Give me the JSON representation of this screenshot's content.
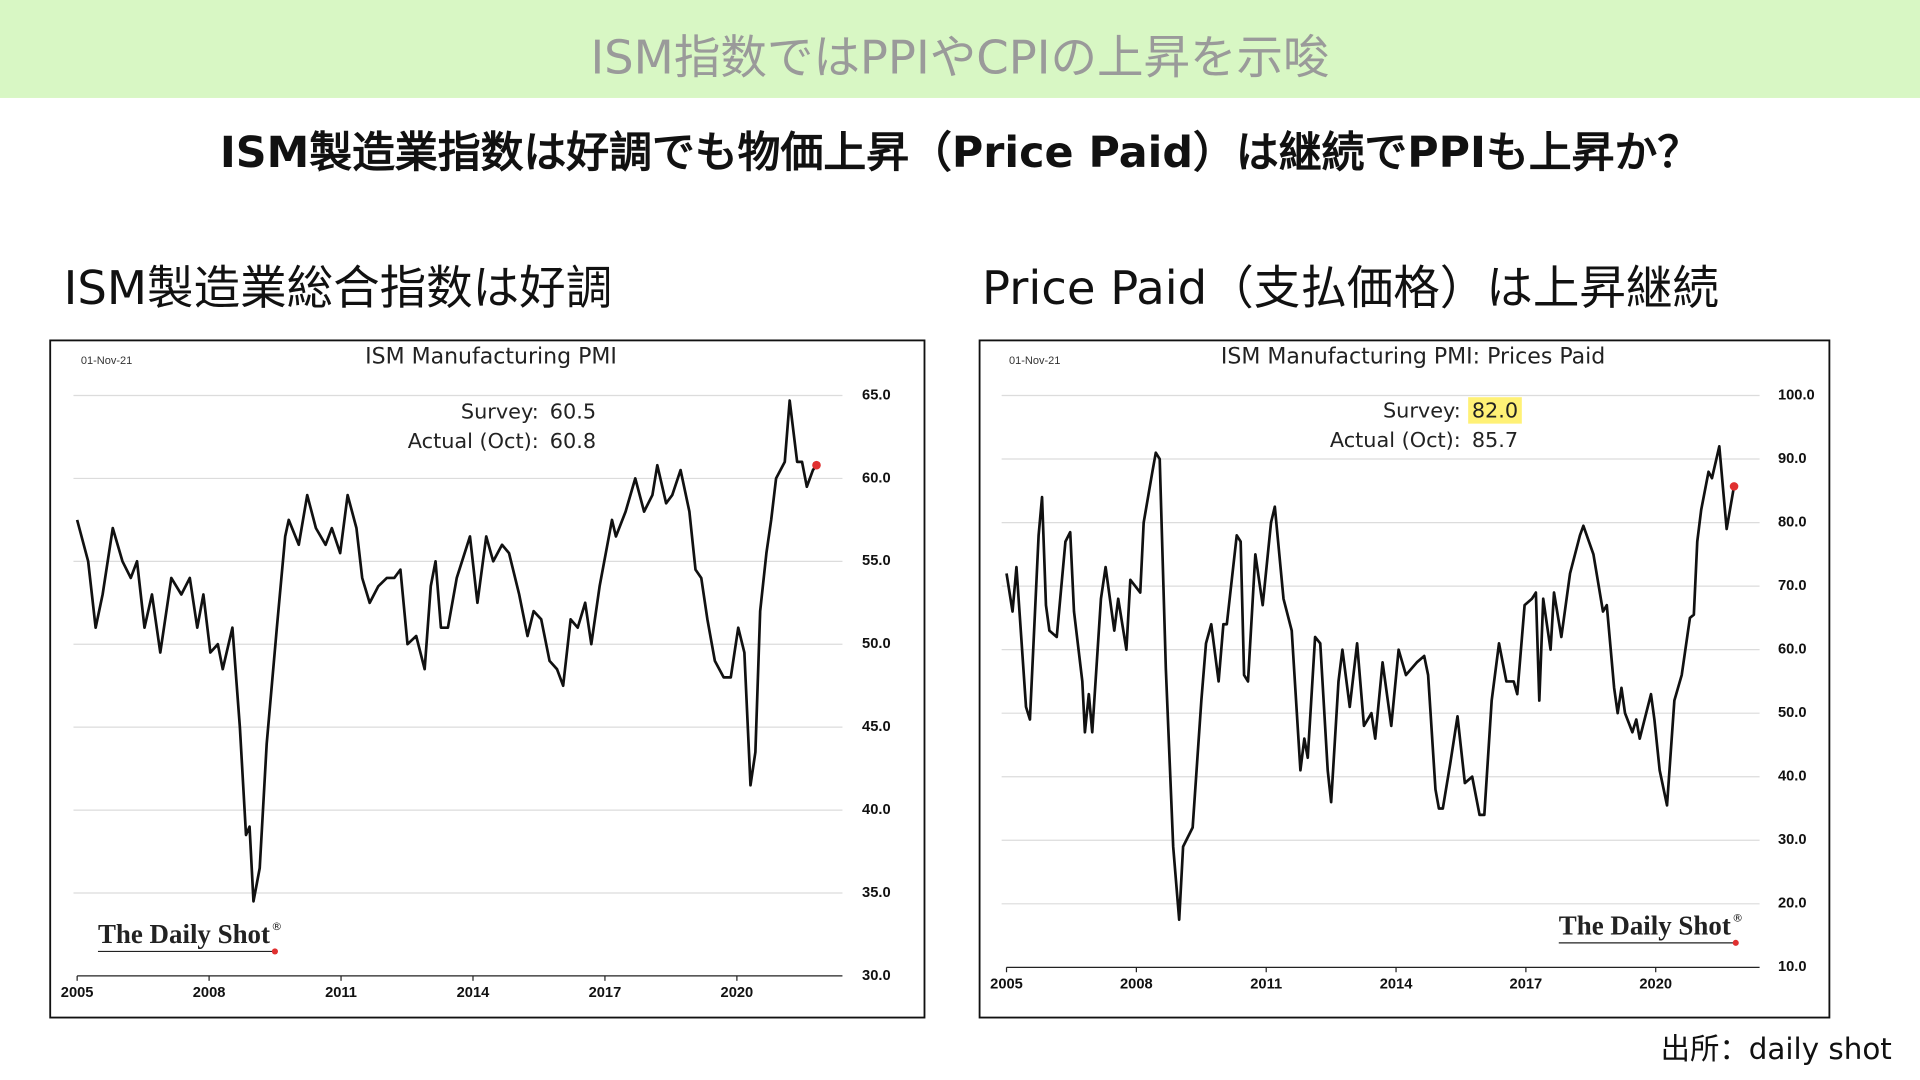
{
  "slide": {
    "header": "ISM指数ではPPIやCPIの上昇を示唆",
    "subtitle": "ISM製造業指数は好調でも物価上昇（Price Paid）は継続でPPIも上昇か？",
    "left_heading": "ISM製造業総合指数は好調",
    "right_heading": "Price Paid（支払価格）は上昇継続",
    "source": "出所：daily shot"
  },
  "chart_data": [
    {
      "type": "line",
      "title": "ISM Manufacturing PMI",
      "date_label": "01-Nov-21",
      "annotations": [
        {
          "label": "Survey:",
          "value": "60.5"
        },
        {
          "label": "Actual (Oct):",
          "value": "60.8"
        }
      ],
      "watermark": "The Daily Shot",
      "watermark_mark": "®",
      "color": "#111111",
      "marker_color": "#e03030",
      "grid": true,
      "x": [
        2005.0,
        2005.25,
        2005.42,
        2005.58,
        2005.81,
        2006.03,
        2006.22,
        2006.36,
        2006.53,
        2006.7,
        2006.89,
        2007.14,
        2007.37,
        2007.56,
        2007.73,
        2007.87,
        2008.03,
        2008.2,
        2008.31,
        2008.53,
        2008.7,
        2008.84,
        2008.92,
        2009.01,
        2009.15,
        2009.31,
        2009.54,
        2009.73,
        2009.81,
        2010.04,
        2010.23,
        2010.43,
        2010.65,
        2010.79,
        2010.98,
        2011.15,
        2011.35,
        2011.48,
        2011.65,
        2011.85,
        2012.04,
        2012.21,
        2012.35,
        2012.51,
        2012.71,
        2012.9,
        2013.04,
        2013.15,
        2013.27,
        2013.43,
        2013.63,
        2013.93,
        2014.1,
        2014.3,
        2014.46,
        2014.66,
        2014.82,
        2015.05,
        2015.24,
        2015.38,
        2015.55,
        2015.74,
        2015.91,
        2016.05,
        2016.22,
        2016.38,
        2016.55,
        2016.69,
        2016.88,
        2017.16,
        2017.25,
        2017.47,
        2017.69,
        2017.89,
        2018.08,
        2018.19,
        2018.39,
        2018.53,
        2018.72,
        2018.92,
        2019.06,
        2019.19,
        2019.33,
        2019.5,
        2019.7,
        2019.86,
        2020.03,
        2020.17,
        2020.31,
        2020.42,
        2020.53,
        2020.67,
        2020.78,
        2020.89,
        2021.09,
        2021.2,
        2021.37,
        2021.48,
        2021.59,
        2021.73,
        2021.81
      ],
      "values": [
        57.5,
        55,
        51,
        53,
        57,
        55,
        54,
        55,
        51,
        53,
        49.5,
        54,
        53,
        54,
        51,
        53,
        49.5,
        50,
        48.5,
        51,
        45,
        38.5,
        39,
        34.5,
        36.5,
        44,
        51,
        56.5,
        57.5,
        56,
        59,
        57,
        56,
        57,
        55.5,
        59,
        57,
        54,
        52.5,
        53.5,
        54,
        54,
        54.5,
        50,
        50.5,
        48.5,
        53.5,
        55,
        51,
        51,
        54,
        56.5,
        52.5,
        56.5,
        55,
        56,
        55.5,
        53,
        50.5,
        52,
        51.5,
        49,
        48.5,
        47.5,
        51.5,
        51,
        52.5,
        50,
        53.5,
        57.5,
        56.5,
        58,
        60,
        58,
        59,
        60.8,
        58.5,
        59,
        60.5,
        58,
        54.5,
        54,
        51.5,
        49,
        48,
        48,
        51,
        49.5,
        41.5,
        43.5,
        52,
        55.5,
        57.5,
        60,
        61,
        64.7,
        61,
        61,
        59.5,
        60.5,
        60.8
      ],
      "xlim": [
        2005,
        2022.4
      ],
      "xticks": [
        2005,
        2008,
        2011,
        2014,
        2017,
        2020
      ],
      "ylim": [
        30,
        65
      ],
      "yticks": [
        {
          "value": 30,
          "label": "30.0"
        },
        {
          "value": 35,
          "label": "35.0"
        },
        {
          "value": 40,
          "label": "40.0"
        },
        {
          "value": 45,
          "label": "45.0"
        },
        {
          "value": 50,
          "label": "50.0"
        },
        {
          "value": 55,
          "label": "55.0"
        },
        {
          "value": 60,
          "label": "60.0"
        },
        {
          "value": 65,
          "label": "65.0"
        }
      ]
    },
    {
      "type": "line",
      "title": "ISM Manufacturing PMI: Prices Paid",
      "date_label": "01-Nov-21",
      "annotations": [
        {
          "label": "Survey:",
          "value": "82.0",
          "highlight": "#fff176"
        },
        {
          "label": "Actual (Oct):",
          "value": "85.7"
        }
      ],
      "watermark": "The Daily Shot",
      "watermark_mark": "®",
      "color": "#111111",
      "marker_color": "#e03030",
      "grid": true,
      "x": [
        2005.0,
        2005.14,
        2005.23,
        2005.45,
        2005.54,
        2005.74,
        2005.82,
        2005.91,
        2005.99,
        2006.16,
        2006.36,
        2006.47,
        2006.56,
        2006.75,
        2006.81,
        2006.9,
        2006.98,
        2007.18,
        2007.29,
        2007.49,
        2007.58,
        2007.77,
        2007.86,
        2008.09,
        2008.17,
        2008.37,
        2008.45,
        2008.54,
        2008.68,
        2008.85,
        2008.99,
        2009.08,
        2009.3,
        2009.5,
        2009.61,
        2009.73,
        2009.9,
        2010.01,
        2010.09,
        2010.32,
        2010.41,
        2010.49,
        2010.58,
        2010.75,
        2010.92,
        2011.11,
        2011.2,
        2011.4,
        2011.59,
        2011.79,
        2011.88,
        2011.96,
        2012.13,
        2012.25,
        2012.42,
        2012.5,
        2012.67,
        2012.76,
        2012.93,
        2013.1,
        2013.26,
        2013.43,
        2013.52,
        2013.69,
        2013.89,
        2014.06,
        2014.23,
        2014.48,
        2014.65,
        2014.74,
        2014.91,
        2014.99,
        2015.08,
        2015.25,
        2015.42,
        2015.59,
        2015.76,
        2015.93,
        2016.04,
        2016.21,
        2016.38,
        2016.55,
        2016.72,
        2016.8,
        2016.97,
        2017.14,
        2017.23,
        2017.31,
        2017.4,
        2017.57,
        2017.65,
        2017.82,
        2018.02,
        2018.25,
        2018.33,
        2018.56,
        2018.78,
        2018.87,
        2019.04,
        2019.12,
        2019.21,
        2019.29,
        2019.46,
        2019.55,
        2019.63,
        2019.89,
        2019.97,
        2020.09,
        2020.26,
        2020.43,
        2020.6,
        2020.79,
        2020.88,
        2020.96,
        2021.05,
        2021.22,
        2021.3,
        2021.47,
        2021.56,
        2021.64,
        2021.81
      ],
      "values": [
        72,
        66,
        73,
        51,
        49,
        78,
        84,
        67,
        63,
        62,
        77,
        78.5,
        66,
        55,
        47,
        53,
        47,
        68,
        73,
        63,
        68,
        60,
        71,
        69,
        80,
        88,
        91,
        90,
        57,
        29,
        17.5,
        29,
        32,
        52,
        61,
        64,
        55,
        64,
        64,
        78,
        77,
        56,
        55,
        75,
        67,
        80,
        82.5,
        68,
        63,
        41,
        46,
        43,
        62,
        61,
        41,
        36,
        55,
        60,
        51,
        61,
        48,
        50,
        46,
        58,
        48,
        60,
        56,
        58,
        59,
        56,
        38,
        35,
        35,
        42,
        49.5,
        39,
        40,
        34,
        34,
        52,
        61,
        55,
        55,
        53,
        67,
        68,
        69,
        52,
        68,
        60,
        69,
        62,
        72,
        78,
        79.5,
        75,
        66,
        67,
        54,
        50,
        54,
        50,
        47,
        49,
        46,
        53,
        49,
        41,
        35.5,
        52,
        56,
        65,
        65.5,
        77,
        82,
        88,
        87,
        92,
        85,
        79,
        85.7
      ],
      "xlim": [
        2005,
        2022.4
      ],
      "xticks": [
        2005,
        2008,
        2011,
        2014,
        2017,
        2020
      ],
      "ylim": [
        10,
        100
      ],
      "yticks": [
        {
          "value": 10,
          "label": "10.0"
        },
        {
          "value": 20,
          "label": "20.0"
        },
        {
          "value": 30,
          "label": "30.0"
        },
        {
          "value": 40,
          "label": "40.0"
        },
        {
          "value": 50,
          "label": "50.0"
        },
        {
          "value": 60,
          "label": "60.0"
        },
        {
          "value": 70,
          "label": "70.0"
        },
        {
          "value": 80,
          "label": "80.0"
        },
        {
          "value": 90,
          "label": "90.0"
        },
        {
          "value": 100,
          "label": "100.0"
        }
      ]
    }
  ]
}
